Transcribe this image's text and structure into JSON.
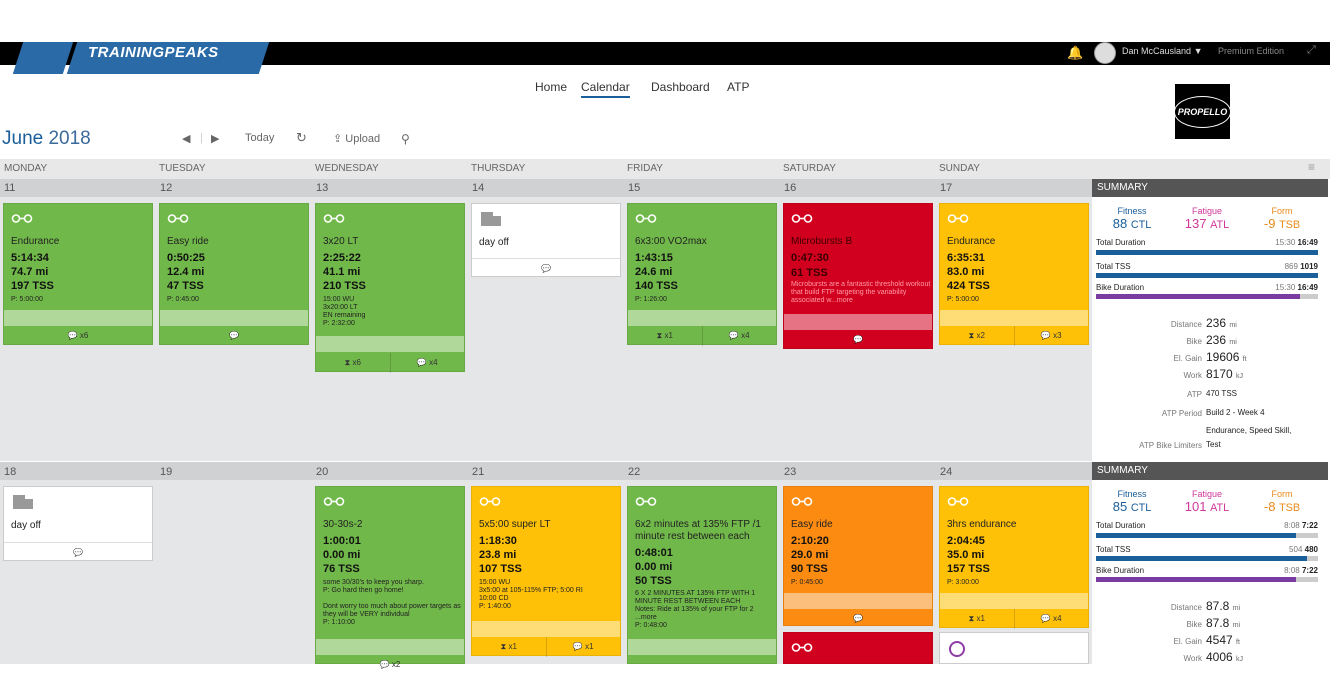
{
  "header": {
    "logo": "TRAININGPEAKS",
    "user": "Dan McCausland",
    "user_caret": "▼",
    "edition": "Premium Edition"
  },
  "nav": [
    "Home",
    "Calendar",
    "Dashboard",
    "ATP"
  ],
  "coach_logo": "PROPELLO",
  "calendar": {
    "month": "June",
    "year": "2018",
    "today_label": "Today",
    "upload_label": "Upload",
    "days": [
      "MONDAY",
      "TUESDAY",
      "WEDNESDAY",
      "THURSDAY",
      "FRIDAY",
      "SATURDAY",
      "SUNDAY"
    ]
  },
  "week1": {
    "dates": [
      "11",
      "12",
      "13",
      "14",
      "15",
      "16",
      "17"
    ],
    "cards": [
      {
        "color": "green",
        "title": "Endurance",
        "time": "5:14:34",
        "dist": "74.7 mi",
        "tss": "197 TSS",
        "note": "P: 5:00:00",
        "foot": [
          "x6"
        ]
      },
      {
        "color": "green",
        "title": "Easy ride",
        "time": "0:50:25",
        "dist": "12.4 mi",
        "tss": "47 TSS",
        "note": "P: 0:45:00",
        "foot": [
          ""
        ]
      },
      {
        "color": "green",
        "title": "3x20 LT",
        "time": "2:25:22",
        "dist": "41.1 mi",
        "tss": "210 TSS",
        "note": "15:00 WU\n3x20:00 LT\nEN remaining\nP: 2:32:00",
        "foot": [
          "x6",
          "x4"
        ]
      },
      {
        "color": "white",
        "title": "day off"
      },
      {
        "color": "green",
        "title": "6x3:00 VO2max",
        "time": "1:43:15",
        "dist": "24.6 mi",
        "tss": "140 TSS",
        "note": "P: 1:26:00",
        "foot": [
          "x1",
          "x4"
        ]
      },
      {
        "color": "red",
        "title": "Microbursts B",
        "time": "0:47:30",
        "dist": "",
        "tss": "61 TSS",
        "note": "Microbursts are a fantastic threshold workout that build FTP targeting the variability associated w...more",
        "foot": [
          ""
        ]
      },
      {
        "color": "yellow",
        "title": "Endurance",
        "time": "6:35:31",
        "dist": "83.0 mi",
        "tss": "424 TSS",
        "note": "P: 5:00:00",
        "foot": [
          "x2",
          "x3"
        ]
      }
    ]
  },
  "week2": {
    "dates": [
      "18",
      "19",
      "20",
      "21",
      "22",
      "23",
      "24"
    ],
    "cards": [
      {
        "color": "white",
        "title": "day off"
      },
      {
        "color": "green",
        "title": "30-30s-2",
        "time": "1:00:01",
        "dist": "0.00 mi",
        "tss": "76 TSS",
        "note": "some 30/30's to keep you sharp.\nP: Go hard then go home!\n\nDont worry too much about power targets as they will be VERY individual\nP: 1:10:00",
        "foot": [
          "x2"
        ]
      },
      {
        "color": "yellow",
        "title": "5x5:00 super LT",
        "time": "1:18:30",
        "dist": "23.8 mi",
        "tss": "107 TSS",
        "note": "15:00 WU\n3x5:00 at 105-115% FTP; 5:00 RI\n10:00 CD\nP: 1:40:00",
        "foot": [
          "x1",
          "x1"
        ]
      },
      {
        "color": "green",
        "title": "6x2 minutes at 135% FTP /1 minute rest between each",
        "time": "0:48:01",
        "dist": "0.00 mi",
        "tss": "50 TSS",
        "note": "6 X 2 MINUTES AT 135% FTP WITH 1 MINUTE REST BETWEEN EACH\nNotes: Ride at 135% of your FTP for 2 ...more\nP: 0:48:00",
        "foot": [
          ""
        ]
      },
      {
        "color": "orange",
        "title": "Easy ride",
        "time": "2:10:20",
        "dist": "29.0 mi",
        "tss": "90 TSS",
        "note": "P: 0:45:00",
        "foot": [
          ""
        ]
      },
      {
        "color": "yellow",
        "title": "3hrs endurance",
        "time": "2:04:45",
        "dist": "35.0 mi",
        "tss": "157 TSS",
        "note": "P: 3:00:00",
        "foot": [
          "x1",
          "x4"
        ]
      }
    ]
  },
  "summary1": {
    "header": "SUMMARY",
    "fitness_label": "Fitness",
    "fitness": "88",
    "fitness_unit": "CTL",
    "fatigue_label": "Fatigue",
    "fatigue": "137",
    "fatigue_unit": "ATL",
    "form_label": "Form",
    "form": "-9",
    "form_unit": "TSB",
    "rows": [
      {
        "label": "Total Duration",
        "planned": "15:30",
        "actual": "16:49",
        "fill": 1.0,
        "color": "#1a5e9a"
      },
      {
        "label": "Total TSS",
        "planned": "869",
        "actual": "1019",
        "fill": 1.0,
        "color": "#1a5e9a"
      },
      {
        "label": "Bike Duration",
        "planned": "15:30",
        "actual": "16:49",
        "fill": 0.92,
        "color": "#7a3ca0"
      }
    ],
    "stats": [
      {
        "label": "Distance",
        "value": "236",
        "unit": "mi"
      },
      {
        "label": "Bike",
        "value": "236",
        "unit": "mi"
      },
      {
        "label": "El. Gain",
        "value": "19606",
        "unit": "ft"
      },
      {
        "label": "Work",
        "value": "8170",
        "unit": "kJ"
      }
    ],
    "atp": "470 TSS",
    "atp_label": "ATP",
    "atp_period_label": "ATP Period",
    "atp_period": "Build 2 - Week 4",
    "limiters_label": "ATP Bike Limiters",
    "limiters1": "Endurance, Speed Skill,",
    "limiters2": "Test"
  },
  "summary2": {
    "header": "SUMMARY",
    "fitness_label": "Fitness",
    "fitness": "85",
    "fitness_unit": "CTL",
    "fatigue_label": "Fatigue",
    "fatigue": "101",
    "fatigue_unit": "ATL",
    "form_label": "Form",
    "form": "-8",
    "form_unit": "TSB",
    "rows": [
      {
        "label": "Total Duration",
        "planned": "8:08",
        "actual": "7:22",
        "fill": 0.9,
        "color": "#1a5e9a"
      },
      {
        "label": "Total TSS",
        "planned": "504",
        "actual": "480",
        "fill": 0.95,
        "color": "#1a5e9a"
      },
      {
        "label": "Bike Duration",
        "planned": "8:08",
        "actual": "7:22",
        "fill": 0.9,
        "color": "#7a3ca0"
      }
    ],
    "stats": [
      {
        "label": "Distance",
        "value": "87.8",
        "unit": "mi"
      },
      {
        "label": "Bike",
        "value": "87.8",
        "unit": "mi"
      },
      {
        "label": "El. Gain",
        "value": "4547",
        "unit": "ft"
      },
      {
        "label": "Work",
        "value": "4006",
        "unit": "kJ"
      }
    ]
  }
}
